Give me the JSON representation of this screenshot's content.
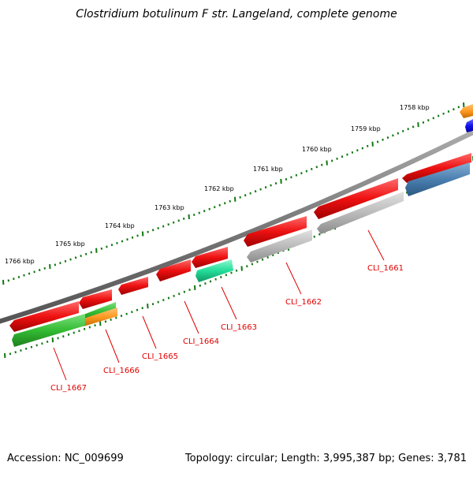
{
  "title": "Clostridium botulinum F str. Langeland, complete genome",
  "footer": {
    "accession": "Accession: NC_009699",
    "summary": "Topology: circular; Length: 3,995,387 bp; Genes: 3,781"
  },
  "ticks": [
    "1758 kbp",
    "1759 kbp",
    "1760 kbp",
    "1761 kbp",
    "1762 kbp",
    "1763 kbp",
    "1764 kbp",
    "1765 kbp",
    "1766 kbp"
  ],
  "genes": [
    "CLI_1661",
    "CLI_1662",
    "CLI_1663",
    "CLI_1664",
    "CLI_1665",
    "CLI_1666",
    "CLI_1667"
  ],
  "colors": {
    "forward": "#ee1111",
    "backbone": "#777777",
    "tick": "#117711",
    "label": "#e00000",
    "gray": "#bbbbbb",
    "steelblue": "#4a7fb0",
    "green": "#33bb33",
    "aqua": "#22dd99",
    "orange": "#ff9922",
    "blue": "#1111ee"
  }
}
